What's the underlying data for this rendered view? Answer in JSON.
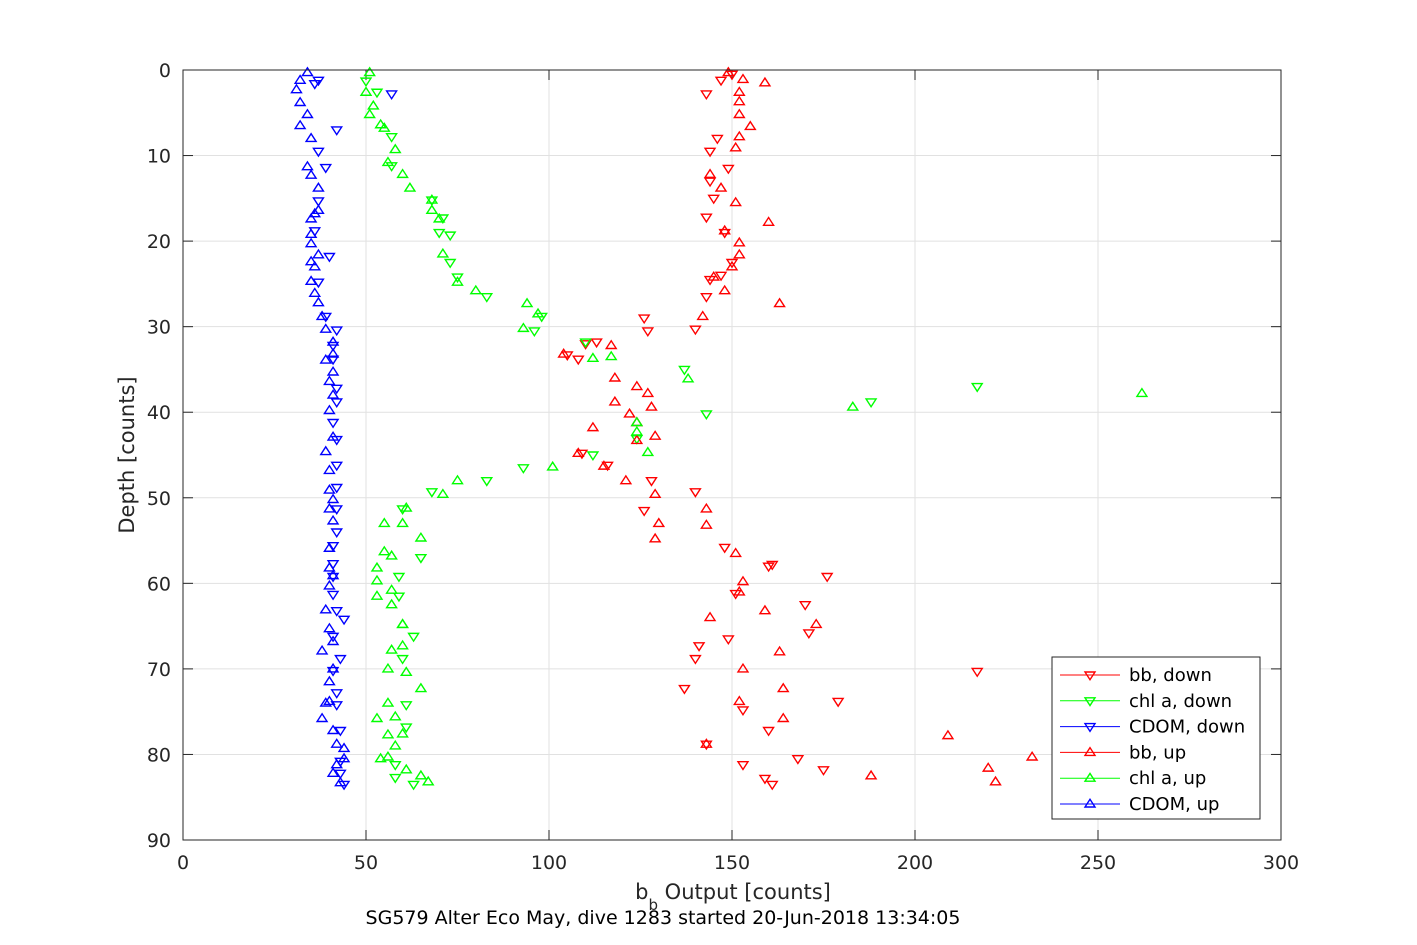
{
  "chart_data": {
    "type": "scatter",
    "title": "SG579 Alter Eco May, dive 1283 started 20-Jun-2018 13:34:05",
    "xlabel": {
      "main": "b",
      "sub": "b",
      "rest": " Output [counts]"
    },
    "ylabel": "Depth [counts]",
    "xlim": [
      0,
      300
    ],
    "ylim": [
      0,
      90
    ],
    "y_reversed": true,
    "xticks": [
      0,
      50,
      100,
      150,
      200,
      250,
      300
    ],
    "yticks": [
      0,
      10,
      20,
      30,
      40,
      50,
      60,
      70,
      80,
      90
    ],
    "grid": true,
    "legend_position": "bottom-right",
    "series": [
      {
        "name": "bb, down",
        "color": "#ff0000",
        "marker": "triangle-down",
        "points": [
          [
            150,
            0.5
          ],
          [
            147,
            1.2
          ],
          [
            143,
            2.8
          ],
          [
            146,
            8
          ],
          [
            144,
            9.5
          ],
          [
            149,
            11.5
          ],
          [
            144,
            13
          ],
          [
            145,
            15
          ],
          [
            143,
            17.2
          ],
          [
            148,
            19
          ],
          [
            150,
            22.5
          ],
          [
            147,
            24
          ],
          [
            144,
            24.5
          ],
          [
            143,
            26.5
          ],
          [
            140,
            30.3
          ],
          [
            126,
            29
          ],
          [
            127,
            30.5
          ],
          [
            110,
            32
          ],
          [
            108,
            33.8
          ],
          [
            105,
            33.3
          ],
          [
            113,
            31.8
          ],
          [
            109,
            44.8
          ],
          [
            116,
            46.2
          ],
          [
            128,
            48
          ],
          [
            140,
            49.3
          ],
          [
            126,
            51.5
          ],
          [
            148,
            55.8
          ],
          [
            160,
            58
          ],
          [
            161,
            57.8
          ],
          [
            176,
            59.2
          ],
          [
            151,
            61.2
          ],
          [
            170,
            62.5
          ],
          [
            171,
            65.8
          ],
          [
            149,
            66.5
          ],
          [
            141,
            67.3
          ],
          [
            140,
            68.8
          ],
          [
            137,
            72.3
          ],
          [
            153,
            74.8
          ],
          [
            160,
            77.2
          ],
          [
            179,
            73.8
          ],
          [
            217,
            70.3
          ],
          [
            143,
            78.8
          ],
          [
            168,
            80.5
          ],
          [
            175,
            81.8
          ],
          [
            153,
            81.2
          ],
          [
            159,
            82.8
          ],
          [
            161,
            83.5
          ]
        ]
      },
      {
        "name": "chl a, down",
        "color": "#00ff00",
        "marker": "triangle-down",
        "points": [
          [
            50,
            1.3
          ],
          [
            53,
            2.6
          ],
          [
            57,
            7.8
          ],
          [
            57,
            11.2
          ],
          [
            68,
            15.2
          ],
          [
            71,
            17.3
          ],
          [
            70,
            19
          ],
          [
            73,
            19.3
          ],
          [
            73,
            22.5
          ],
          [
            75,
            24.2
          ],
          [
            83,
            26.5
          ],
          [
            98,
            28.8
          ],
          [
            96,
            30.5
          ],
          [
            110,
            31.8
          ],
          [
            137,
            35
          ],
          [
            188,
            38.8
          ],
          [
            217,
            37
          ],
          [
            143,
            40.2
          ],
          [
            124,
            43.1
          ],
          [
            112,
            45
          ],
          [
            93,
            46.5
          ],
          [
            83,
            48
          ],
          [
            68,
            49.3
          ],
          [
            60,
            51.3
          ],
          [
            65,
            57
          ],
          [
            59,
            59.2
          ],
          [
            59,
            61.5
          ],
          [
            63,
            66.2
          ],
          [
            60,
            68.8
          ],
          [
            61,
            74.2
          ],
          [
            61,
            76.8
          ],
          [
            58,
            81.2
          ],
          [
            58,
            82.7
          ],
          [
            63,
            83.5
          ]
        ]
      },
      {
        "name": "CDOM, down",
        "color": "#0000ff",
        "marker": "triangle-down",
        "points": [
          [
            37,
            1.2
          ],
          [
            36,
            1.6
          ],
          [
            57,
            2.8
          ],
          [
            42,
            7
          ],
          [
            37,
            9.5
          ],
          [
            39,
            11.4
          ],
          [
            37,
            15.3
          ],
          [
            36,
            18.8
          ],
          [
            40,
            21.8
          ],
          [
            37,
            24.8
          ],
          [
            39,
            28.8
          ],
          [
            42,
            30.4
          ],
          [
            41,
            32.2
          ],
          [
            41,
            33.8
          ],
          [
            42,
            37.2
          ],
          [
            42,
            38.8
          ],
          [
            41,
            41.2
          ],
          [
            42,
            43.2
          ],
          [
            42,
            46.2
          ],
          [
            42,
            48.8
          ],
          [
            42,
            51.3
          ],
          [
            42,
            54
          ],
          [
            41,
            55.6
          ],
          [
            41,
            57.7
          ],
          [
            41,
            59.2
          ],
          [
            41,
            61.3
          ],
          [
            42,
            63.2
          ],
          [
            44,
            64.2
          ],
          [
            41,
            66.2
          ],
          [
            43,
            68.8
          ],
          [
            41,
            70.2
          ],
          [
            42,
            72.8
          ],
          [
            42,
            74.2
          ],
          [
            43,
            77.2
          ],
          [
            43,
            80.8
          ],
          [
            43,
            82.2
          ],
          [
            44,
            83.5
          ]
        ]
      },
      {
        "name": "bb, up",
        "color": "#ff0000",
        "marker": "triangle-up",
        "points": [
          [
            149,
            0.3
          ],
          [
            153,
            1.1
          ],
          [
            159,
            1.5
          ],
          [
            152,
            2.6
          ],
          [
            152,
            3.7
          ],
          [
            152,
            5.2
          ],
          [
            155,
            6.6
          ],
          [
            152,
            7.8
          ],
          [
            151,
            9.1
          ],
          [
            144,
            12.2
          ],
          [
            147,
            13.8
          ],
          [
            151,
            15.5
          ],
          [
            160,
            17.8
          ],
          [
            148,
            18.8
          ],
          [
            152,
            20.2
          ],
          [
            152,
            21.6
          ],
          [
            150,
            23
          ],
          [
            145,
            24.2
          ],
          [
            148,
            25.8
          ],
          [
            163,
            27.3
          ],
          [
            142,
            28.8
          ],
          [
            104,
            33.2
          ],
          [
            117,
            32.2
          ],
          [
            118,
            36
          ],
          [
            118,
            38.8
          ],
          [
            122,
            40.2
          ],
          [
            124,
            37
          ],
          [
            127,
            37.8
          ],
          [
            128,
            39.4
          ],
          [
            112,
            41.8
          ],
          [
            124,
            41.2
          ],
          [
            124,
            43.3
          ],
          [
            129,
            42.8
          ],
          [
            108,
            44.8
          ],
          [
            115,
            46.3
          ],
          [
            121,
            48
          ],
          [
            129,
            49.6
          ],
          [
            143,
            51.3
          ],
          [
            130,
            53
          ],
          [
            143,
            53.2
          ],
          [
            129,
            54.8
          ],
          [
            151,
            56.5
          ],
          [
            153,
            59.8
          ],
          [
            152,
            61
          ],
          [
            159,
            63.2
          ],
          [
            173,
            64.8
          ],
          [
            144,
            64
          ],
          [
            163,
            68
          ],
          [
            153,
            70
          ],
          [
            164,
            72.3
          ],
          [
            152,
            73.8
          ],
          [
            164,
            75.8
          ],
          [
            209,
            77.8
          ],
          [
            143,
            78.8
          ],
          [
            232,
            80.3
          ],
          [
            220,
            81.6
          ],
          [
            222,
            83.2
          ],
          [
            188,
            82.5
          ]
        ]
      },
      {
        "name": "chl a, up",
        "color": "#00ff00",
        "marker": "triangle-up",
        "points": [
          [
            51,
            0.3
          ],
          [
            50,
            2.6
          ],
          [
            52,
            4.2
          ],
          [
            51,
            5.2
          ],
          [
            54,
            6.4
          ],
          [
            55,
            6.8
          ],
          [
            58,
            9.3
          ],
          [
            56,
            10.8
          ],
          [
            60,
            12.2
          ],
          [
            62,
            13.8
          ],
          [
            68,
            16.4
          ],
          [
            68,
            15.2
          ],
          [
            70,
            17.4
          ],
          [
            71,
            21.5
          ],
          [
            75,
            24.8
          ],
          [
            80,
            25.8
          ],
          [
            93,
            30.2
          ],
          [
            94,
            27.3
          ],
          [
            97,
            28.5
          ],
          [
            117,
            33.5
          ],
          [
            112,
            33.7
          ],
          [
            138,
            36.1
          ],
          [
            183,
            39.4
          ],
          [
            262,
            37.8
          ],
          [
            124,
            41.2
          ],
          [
            124,
            42.3
          ],
          [
            127,
            44.7
          ],
          [
            101,
            46.4
          ],
          [
            75,
            48
          ],
          [
            71,
            49.6
          ],
          [
            61,
            51.2
          ],
          [
            55,
            53
          ],
          [
            60,
            53
          ],
          [
            65,
            54.7
          ],
          [
            55,
            56.3
          ],
          [
            57,
            56.8
          ],
          [
            53,
            58.2
          ],
          [
            53,
            59.7
          ],
          [
            57,
            60.8
          ],
          [
            53,
            61.5
          ],
          [
            57,
            62.5
          ],
          [
            60,
            64.8
          ],
          [
            60,
            67.3
          ],
          [
            60,
            64.8
          ],
          [
            57,
            67.8
          ],
          [
            56,
            70
          ],
          [
            61,
            70.4
          ],
          [
            65,
            72.3
          ],
          [
            56,
            74
          ],
          [
            58,
            75.6
          ],
          [
            53,
            75.8
          ],
          [
            60,
            77.6
          ],
          [
            56,
            77.7
          ],
          [
            58,
            79
          ],
          [
            54,
            80.5
          ],
          [
            56,
            80.3
          ],
          [
            61,
            81.8
          ],
          [
            65,
            82.5
          ],
          [
            67,
            83.2
          ]
        ]
      },
      {
        "name": "CDOM, up",
        "color": "#0000ff",
        "marker": "triangle-up",
        "points": [
          [
            34,
            0.3
          ],
          [
            32,
            1.2
          ],
          [
            31,
            2.3
          ],
          [
            32,
            3.8
          ],
          [
            34,
            5.2
          ],
          [
            32,
            6.5
          ],
          [
            35,
            8
          ],
          [
            34,
            11.3
          ],
          [
            35,
            12.3
          ],
          [
            37,
            13.8
          ],
          [
            36,
            16.8
          ],
          [
            37,
            16.4
          ],
          [
            35,
            17.4
          ],
          [
            35,
            19.2
          ],
          [
            35,
            20.3
          ],
          [
            37,
            21.6
          ],
          [
            35,
            22.4
          ],
          [
            36,
            23
          ],
          [
            35,
            24.7
          ],
          [
            36,
            26.1
          ],
          [
            37,
            27.2
          ],
          [
            38,
            28.8
          ],
          [
            39,
            30.3
          ],
          [
            41,
            31.8
          ],
          [
            41,
            33.2
          ],
          [
            39,
            33.9
          ],
          [
            41,
            35.3
          ],
          [
            40,
            36.4
          ],
          [
            41,
            38
          ],
          [
            40,
            39.8
          ],
          [
            41,
            42.9
          ],
          [
            39,
            44.6
          ],
          [
            40,
            46.8
          ],
          [
            40,
            49.1
          ],
          [
            41,
            50.2
          ],
          [
            40,
            51.3
          ],
          [
            41,
            52.7
          ],
          [
            40,
            55.9
          ],
          [
            40,
            58.2
          ],
          [
            41,
            59.1
          ],
          [
            40,
            60.3
          ],
          [
            39,
            63.1
          ],
          [
            40,
            65.3
          ],
          [
            41,
            66.8
          ],
          [
            38,
            67.9
          ],
          [
            41,
            70
          ],
          [
            40,
            71.5
          ],
          [
            40,
            73.8
          ],
          [
            39,
            74
          ],
          [
            38,
            75.8
          ],
          [
            41,
            77.2
          ],
          [
            42,
            78.8
          ],
          [
            44,
            79.3
          ],
          [
            44,
            80.5
          ],
          [
            42,
            81.2
          ],
          [
            41,
            82.2
          ],
          [
            43,
            83.3
          ]
        ]
      }
    ]
  }
}
